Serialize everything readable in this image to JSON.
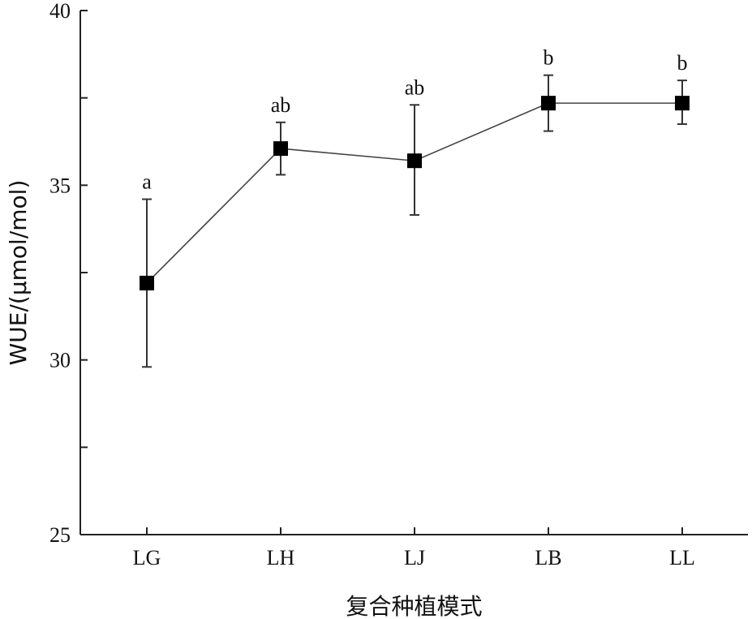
{
  "chart_data": {
    "type": "line",
    "title": "",
    "xlabel": "复合种植模式",
    "ylabel": "WUE/(μmol/mol)",
    "categories": [
      "LG",
      "LH",
      "LJ",
      "LB",
      "LL"
    ],
    "ylim": [
      25,
      40
    ],
    "yticks": [
      25,
      30,
      35,
      40
    ],
    "series": [
      {
        "values": [
          32.2,
          36.05,
          35.7,
          37.35,
          37.35
        ],
        "error_low": [
          29.8,
          35.3,
          34.15,
          36.55,
          36.75
        ],
        "error_high": [
          34.6,
          36.8,
          37.3,
          38.15,
          38.0
        ],
        "significance": [
          "a",
          "ab",
          "ab",
          "b",
          "b"
        ],
        "color": "#000000",
        "marker": "square"
      }
    ],
    "grid": false,
    "legend": "none"
  }
}
